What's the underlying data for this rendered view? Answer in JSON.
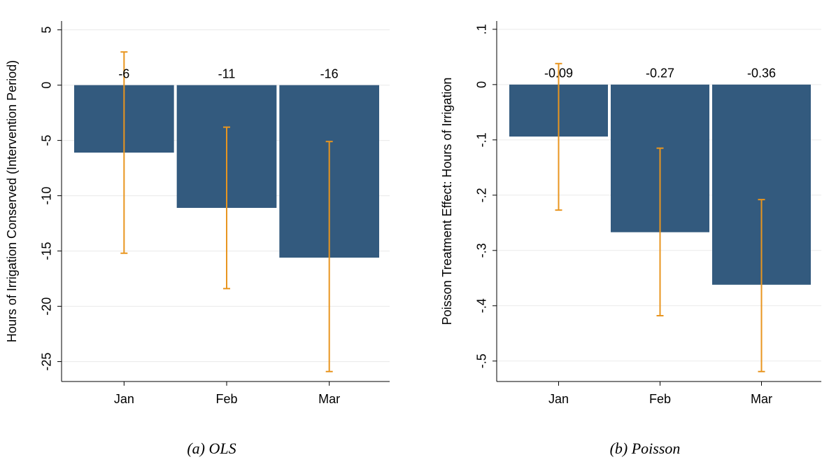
{
  "chart_data": [
    {
      "type": "bar",
      "y_label": "Hours of Irrigation Conserved (Intervention Period)",
      "caption": "(a) OLS",
      "categories": [
        "Jan",
        "Feb",
        "Mar"
      ],
      "series": [
        {
          "color": "#335a7e",
          "values": [
            -6.1,
            -11.1,
            -15.6
          ],
          "value_labels": [
            "-6",
            "-11",
            "-16"
          ],
          "ci_low": [
            -15.2,
            -18.4,
            -25.9
          ],
          "ci_high": [
            3.0,
            -3.8,
            -5.1
          ],
          "error_color": "#e8951f"
        }
      ],
      "ylim": [
        -26.8,
        5.8
      ],
      "yticks": [
        5,
        0,
        -5,
        -10,
        -15,
        -20,
        -25
      ],
      "grid": true
    },
    {
      "type": "bar",
      "y_label": "Poisson Treatment Effect: Hours of Irrigation",
      "caption": "(b) Poisson",
      "categories": [
        "Jan",
        "Feb",
        "Mar"
      ],
      "series": [
        {
          "color": "#335a7e",
          "values": [
            -0.094,
            -0.267,
            -0.362
          ],
          "value_labels": [
            "-0.09",
            "-0.27",
            "-0.36"
          ],
          "ci_low": [
            -0.227,
            -0.418,
            -0.519
          ],
          "ci_high": [
            0.038,
            -0.115,
            -0.208
          ],
          "error_color": "#e8951f"
        }
      ],
      "ylim": [
        -0.537,
        0.115
      ],
      "yticks": [
        {
          "value": 0.1,
          "label": ".1"
        },
        0,
        {
          "value": -0.1,
          "label": "-.1"
        },
        {
          "value": -0.2,
          "label": "-.2"
        },
        {
          "value": -0.3,
          "label": "-.3"
        },
        {
          "value": -0.4,
          "label": "-.4"
        },
        {
          "value": -0.5,
          "label": "-.5"
        }
      ],
      "grid": true
    }
  ]
}
